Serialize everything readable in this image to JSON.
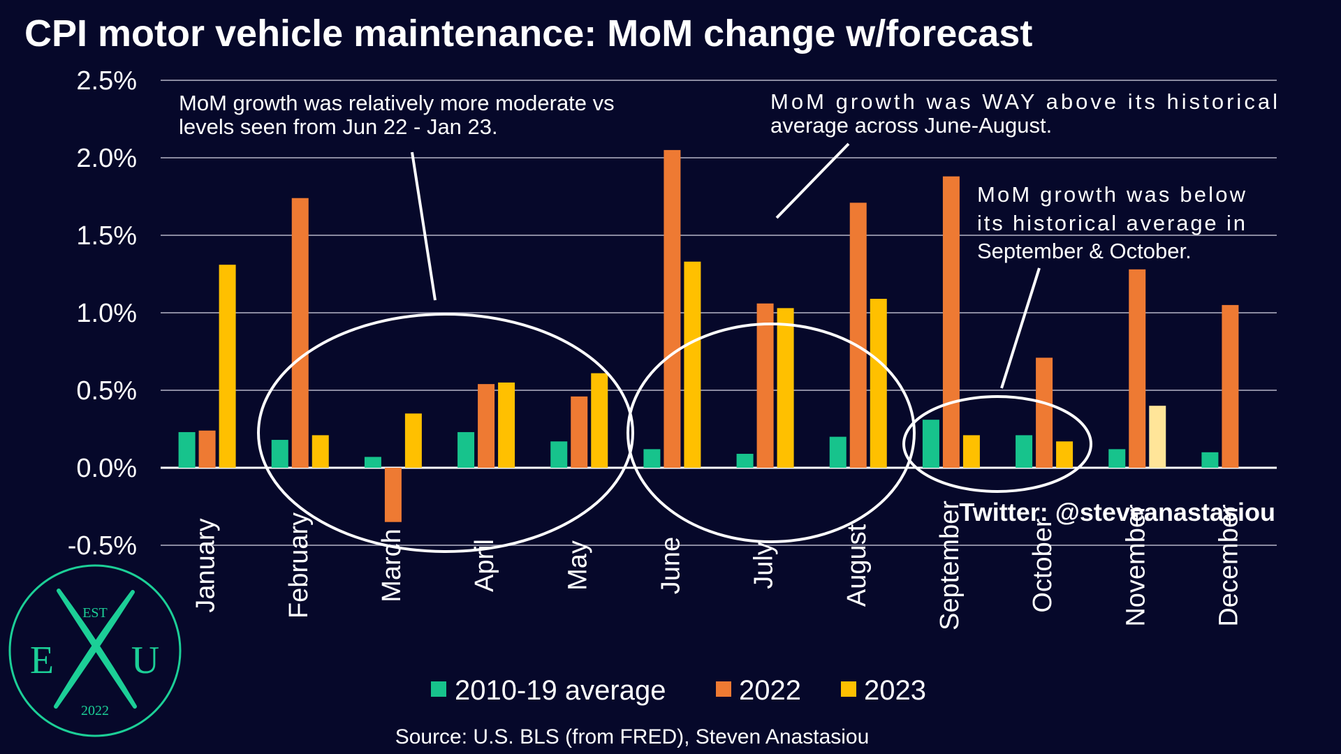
{
  "colors": {
    "background": "#06082a",
    "avg": "#17c38c",
    "y2022": "#ee7a33",
    "y2023": "#ffc000",
    "y2023_forecast": "#ffe599",
    "grid": "#8a8aa0",
    "logo": "#1ccf97"
  },
  "chart_data": {
    "type": "bar",
    "title": "CPI motor vehicle maintenance: MoM change w/forecast",
    "categories": [
      "January",
      "February",
      "March",
      "April",
      "May",
      "June",
      "July",
      "August",
      "September",
      "October",
      "November",
      "December"
    ],
    "series": [
      {
        "name": "2010-19 average",
        "color": "#17c38c",
        "values": [
          0.23,
          0.18,
          0.07,
          0.23,
          0.17,
          0.12,
          0.09,
          0.2,
          0.31,
          0.21,
          0.12,
          0.1
        ]
      },
      {
        "name": "2022",
        "color": "#ee7a33",
        "values": [
          0.24,
          1.74,
          -0.35,
          0.54,
          0.46,
          2.05,
          1.06,
          1.71,
          1.88,
          0.71,
          1.28,
          1.05
        ]
      },
      {
        "name": "2023",
        "color": "#ffc000",
        "forecast_color": "#ffe599",
        "forecast_categories": [
          "November"
        ],
        "values": [
          1.31,
          0.21,
          0.35,
          0.55,
          0.61,
          1.33,
          1.03,
          1.09,
          0.21,
          0.17,
          0.4,
          null
        ]
      }
    ],
    "yticks": [
      "-0.5%",
      "0.0%",
      "0.5%",
      "1.0%",
      "1.5%",
      "2.0%",
      "2.5%"
    ],
    "ytick_values": [
      -0.5,
      0,
      0.5,
      1.0,
      1.5,
      2.0,
      2.5
    ],
    "ylim": [
      -0.5,
      2.5
    ],
    "grid": true,
    "legend_position": "bottom",
    "annotations": [
      {
        "id": "note1",
        "lines": [
          "MoM growth was relatively more moderate vs",
          "levels seen from Jun 22 - Jan 23."
        ]
      },
      {
        "id": "note2",
        "lines": [
          "MoM growth was WAY above its historical",
          "average across June-August."
        ]
      },
      {
        "id": "note3",
        "lines": [
          "MoM growth was below",
          "its historical average in",
          "September & October."
        ]
      }
    ]
  },
  "footer": {
    "twitter": "Twitter: @steveanastasiou",
    "source": "Source: U.S. BLS (from FRED), Steven Anastasiou"
  },
  "logo": {
    "top": "EST",
    "left": "E",
    "middle": "X",
    "right": "U",
    "bottom": "2022"
  }
}
